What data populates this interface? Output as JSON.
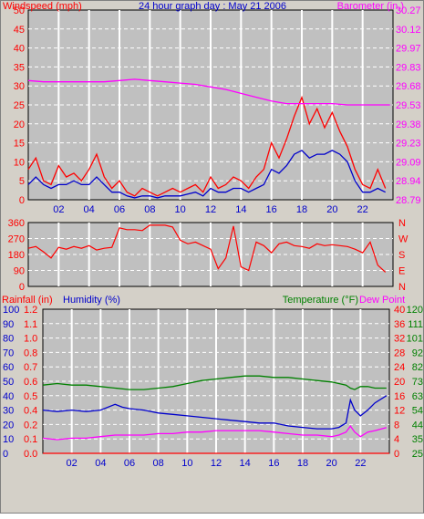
{
  "chart_data": [
    {
      "type": "line",
      "title": "24 hour graph day : May 21 2006",
      "left_axis_label": "Windspeed (mph)",
      "right_axis_label": "Barometer (in.)",
      "x_ticks": [
        "02",
        "04",
        "06",
        "08",
        "10",
        "12",
        "14",
        "16",
        "18",
        "20",
        "22"
      ],
      "x_range": [
        0,
        24
      ],
      "left_ticks": [
        0,
        5,
        10,
        15,
        20,
        25,
        30,
        35,
        40,
        45,
        50
      ],
      "left_range": [
        0,
        50
      ],
      "right_ticks": [
        "28.79",
        "28.94",
        "29.09",
        "29.23",
        "29.38",
        "29.53",
        "29.68",
        "29.83",
        "29.97",
        "30.12",
        "30.27"
      ],
      "right_range": [
        28.79,
        30.27
      ],
      "grid": true,
      "colors": {
        "windspeed": "#ff0000",
        "avg_wind": "#0000cc",
        "barometer": "#ff00ff"
      },
      "series": [
        {
          "name": "Windspeed (mph)",
          "axis": "left",
          "color": "#ff0000",
          "x": [
            0,
            0.5,
            1,
            1.5,
            2,
            2.5,
            3,
            3.5,
            4,
            4.5,
            5,
            5.5,
            6,
            6.5,
            7,
            7.5,
            8,
            8.5,
            9,
            9.5,
            10,
            10.5,
            11,
            11.5,
            12,
            12.5,
            13,
            13.5,
            14,
            14.5,
            15,
            15.5,
            16,
            16.5,
            17,
            17.5,
            18,
            18.5,
            19,
            19.5,
            20,
            20.5,
            21,
            21.5,
            22,
            22.5,
            23,
            23.5
          ],
          "y": [
            8,
            11,
            5,
            4,
            9,
            6,
            7,
            5,
            8,
            12,
            6,
            3,
            5,
            2,
            1,
            3,
            2,
            1,
            2,
            3,
            2,
            3,
            4,
            2,
            6,
            3,
            4,
            6,
            5,
            3,
            6,
            8,
            15,
            11,
            16,
            22,
            27,
            20,
            24,
            19,
            23,
            18,
            14,
            8,
            4,
            3,
            8,
            3
          ]
        },
        {
          "name": "",
          "axis": "left",
          "color": "#0000cc",
          "x": [
            0,
            0.5,
            1,
            1.5,
            2,
            2.5,
            3,
            3.5,
            4,
            4.5,
            5,
            5.5,
            6,
            6.5,
            7,
            7.5,
            8,
            8.5,
            9,
            9.5,
            10,
            10.5,
            11,
            11.5,
            12,
            12.5,
            13,
            13.5,
            14,
            14.5,
            15,
            15.5,
            16,
            16.5,
            17,
            17.5,
            18,
            18.5,
            19,
            19.5,
            20,
            20.5,
            21,
            21.5,
            22,
            22.5,
            23,
            23.5
          ],
          "y": [
            4,
            6,
            4,
            3,
            4,
            4,
            5,
            4,
            4,
            6,
            4,
            2,
            2,
            1,
            0.5,
            1,
            1,
            0.5,
            1,
            1,
            1,
            1.5,
            2,
            1,
            3,
            2,
            2,
            3,
            3,
            2,
            3,
            4,
            8,
            7,
            9,
            12,
            13,
            11,
            12,
            12,
            13,
            12,
            10,
            5,
            2,
            2,
            3,
            2
          ]
        },
        {
          "name": "Barometer (in.)",
          "axis": "right",
          "color": "#ff00ff",
          "x": [
            0,
            1,
            2,
            3,
            4,
            5,
            6,
            7,
            8,
            9,
            10,
            11,
            12,
            13,
            14,
            15,
            16,
            17,
            18,
            19,
            20,
            21,
            22,
            23,
            23.8
          ],
          "y": [
            29.72,
            29.71,
            29.71,
            29.71,
            29.71,
            29.71,
            29.72,
            29.73,
            29.72,
            29.71,
            29.7,
            29.69,
            29.67,
            29.65,
            29.62,
            29.59,
            29.56,
            29.54,
            29.54,
            29.54,
            29.54,
            29.53,
            29.53,
            29.53,
            29.53
          ]
        }
      ]
    },
    {
      "type": "line",
      "title": "",
      "left_ticks": [
        0,
        90,
        180,
        270,
        360
      ],
      "left_range": [
        0,
        360
      ],
      "right_ticks": [
        "N",
        "W",
        "S",
        "E",
        "N"
      ],
      "x_range": [
        0,
        24
      ],
      "grid": true,
      "series": [
        {
          "name": "",
          "color": "#ff0000",
          "x": [
            0,
            0.5,
            1,
            1.5,
            2,
            2.5,
            3,
            3.5,
            4,
            4.5,
            5,
            5.5,
            6,
            6.5,
            7,
            7.5,
            8,
            8.5,
            9,
            9.5,
            10,
            10.5,
            11,
            11.5,
            12,
            12.5,
            13,
            13.5,
            14,
            14.5,
            15,
            15.5,
            16,
            16.5,
            17,
            17.5,
            18,
            18.5,
            19,
            19.5,
            20,
            20.5,
            21,
            21.5,
            22,
            22.5,
            23,
            23.5
          ],
          "y": [
            215,
            225,
            195,
            160,
            220,
            210,
            225,
            215,
            230,
            205,
            215,
            220,
            330,
            320,
            320,
            315,
            345,
            345,
            345,
            335,
            260,
            240,
            250,
            230,
            210,
            100,
            160,
            340,
            110,
            90,
            250,
            230,
            190,
            240,
            250,
            230,
            225,
            215,
            240,
            230,
            235,
            230,
            225,
            210,
            190,
            250,
            120,
            80
          ]
        }
      ]
    },
    {
      "type": "line",
      "title": "",
      "labels_top": [
        "Rainfall (in)",
        "Humidity (%)",
        "Temperature (°F)",
        "Dew Point"
      ],
      "x_ticks": [
        "02",
        "04",
        "06",
        "08",
        "10",
        "12",
        "14",
        "16",
        "18",
        "20",
        "22"
      ],
      "x_range": [
        0,
        24
      ],
      "humidity_ticks": [
        0,
        10,
        20,
        30,
        40,
        50,
        60,
        70,
        80,
        90,
        100
      ],
      "rainfall_ticks": [
        "0.0",
        "0.1",
        "0.2",
        "0.4",
        "0.5",
        "0.6",
        "0.7",
        "0.8",
        "1.0",
        "1.1",
        "1.2"
      ],
      "dewpoint_ticks": [
        0,
        4,
        8,
        12,
        16,
        20,
        24,
        28,
        32,
        36,
        40
      ],
      "temperature_ticks": [
        25,
        35,
        44,
        54,
        63,
        73,
        82,
        92,
        101,
        111,
        120
      ],
      "grid": true,
      "series": [
        {
          "name": "Temperature (°F)",
          "color": "#008000",
          "x": [
            0,
            1,
            2,
            3,
            4,
            5,
            6,
            7,
            8,
            9,
            10,
            11,
            12,
            13,
            14,
            15,
            16,
            17,
            18,
            19,
            20,
            20.5,
            21,
            21.3,
            21.6,
            22,
            22.5,
            23,
            23.8
          ],
          "y": [
            70,
            71,
            70,
            70,
            69,
            68,
            67,
            67,
            68,
            69,
            71,
            73,
            74,
            75,
            76,
            76,
            75,
            75,
            74,
            73,
            72,
            71,
            70,
            68,
            67,
            69,
            69,
            68,
            68
          ]
        },
        {
          "name": "Humidity (%)",
          "color": "#0000cc",
          "x": [
            0,
            1,
            2,
            3,
            4,
            5,
            5.5,
            6,
            7,
            8,
            9,
            10,
            11,
            12,
            13,
            14,
            15,
            16,
            17,
            18,
            19,
            20,
            20.5,
            21,
            21.3,
            21.6,
            22,
            22.5,
            23,
            23.8
          ],
          "y": [
            30,
            29,
            30,
            29,
            30,
            34,
            32,
            31,
            30,
            28,
            27,
            26,
            25,
            24,
            23,
            22,
            21,
            21,
            19,
            18,
            17,
            17,
            18,
            21,
            37,
            30,
            26,
            30,
            35,
            40
          ]
        },
        {
          "name": "Dew Point",
          "color": "#ff00ff",
          "x": [
            0,
            1,
            2,
            3,
            4,
            5,
            6,
            7,
            8,
            9,
            10,
            11,
            12,
            13,
            14,
            15,
            16,
            17,
            18,
            19,
            20,
            20.5,
            21,
            21.3,
            21.6,
            22,
            22.5,
            23,
            23.8
          ],
          "y": [
            35,
            34,
            35,
            35,
            36,
            37,
            37,
            37,
            38,
            38,
            39,
            39,
            40,
            40,
            40,
            40,
            39,
            38,
            37,
            37,
            36,
            37,
            39,
            43,
            39,
            36,
            39,
            40,
            42
          ]
        },
        {
          "name": "Rainfall (in)",
          "color": "#ff0000",
          "x": [
            0,
            24
          ],
          "y": [
            0,
            0
          ]
        }
      ]
    }
  ]
}
